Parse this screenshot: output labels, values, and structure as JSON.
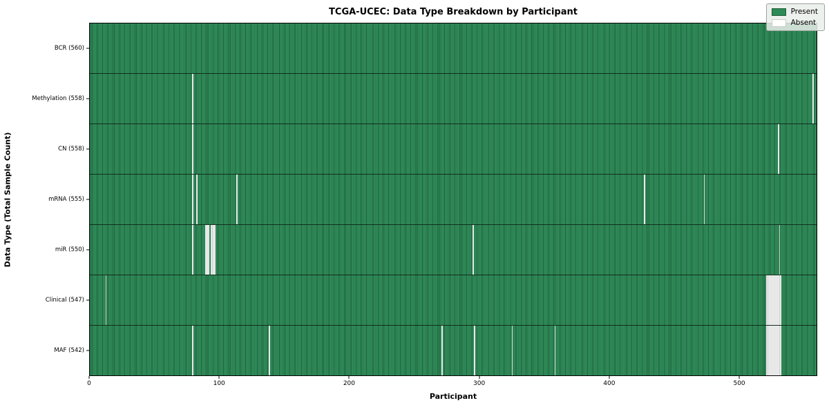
{
  "figure": {
    "title": "TCGA-UCEC: Data Type Breakdown by Participant",
    "xlabel": "Participant",
    "ylabel": "Data Type (Total Sample Count)"
  },
  "legend": {
    "position": "upper right",
    "present_label": "Present",
    "absent_label": "Absent"
  },
  "colors": {
    "present": "#2e8b57",
    "present_stripe_dark": "#1d5c39",
    "absent": "#ffffff",
    "spine": "#000000",
    "legend_bg": "#eaefea"
  },
  "chart_data": {
    "type": "heatmap",
    "title": "TCGA-UCEC: Data Type Breakdown by Participant",
    "xlabel": "Participant",
    "ylabel": "Data Type (Total Sample Count)",
    "x_ticks": [
      0,
      100,
      200,
      300,
      400,
      500
    ],
    "xlim": [
      0,
      560
    ],
    "n_participants": 560,
    "grid": false,
    "legend_entries": [
      "Present",
      "Absent"
    ],
    "legend_position": "upper right",
    "cell_values": {
      "present": 1,
      "absent": 0
    },
    "rows": [
      {
        "label": "BCR (560)",
        "data_type": "BCR",
        "present_count": 560,
        "absent_count": 0,
        "absent_participants": []
      },
      {
        "label": "Methylation (558)",
        "data_type": "Methylation",
        "present_count": 558,
        "absent_count": 2,
        "absent_participants": [
          79,
          557
        ]
      },
      {
        "label": "CN (558)",
        "data_type": "CN",
        "present_count": 558,
        "absent_count": 2,
        "absent_participants": [
          79,
          530
        ]
      },
      {
        "label": "mRNA (555)",
        "data_type": "mRNA",
        "present_count": 555,
        "absent_count": 5,
        "absent_participants": [
          79,
          82,
          113,
          427,
          473
        ]
      },
      {
        "label": "miR (550)",
        "data_type": "miR",
        "present_count": 550,
        "absent_count": 10,
        "absent_participants": [
          79,
          89,
          90,
          91,
          93,
          94,
          95,
          96,
          295,
          531
        ]
      },
      {
        "label": "Clinical (547)",
        "data_type": "Clinical",
        "present_count": 547,
        "absent_count": 13,
        "absent_participants": [
          12,
          521,
          522,
          523,
          524,
          525,
          526,
          527,
          528,
          529,
          530,
          531,
          532
        ]
      },
      {
        "label": "MAF (542)",
        "data_type": "MAF",
        "present_count": 542,
        "absent_count": 18,
        "absent_participants": [
          79,
          138,
          271,
          296,
          325,
          358,
          521,
          522,
          523,
          524,
          525,
          526,
          527,
          528,
          529,
          530,
          531,
          532
        ]
      }
    ]
  }
}
